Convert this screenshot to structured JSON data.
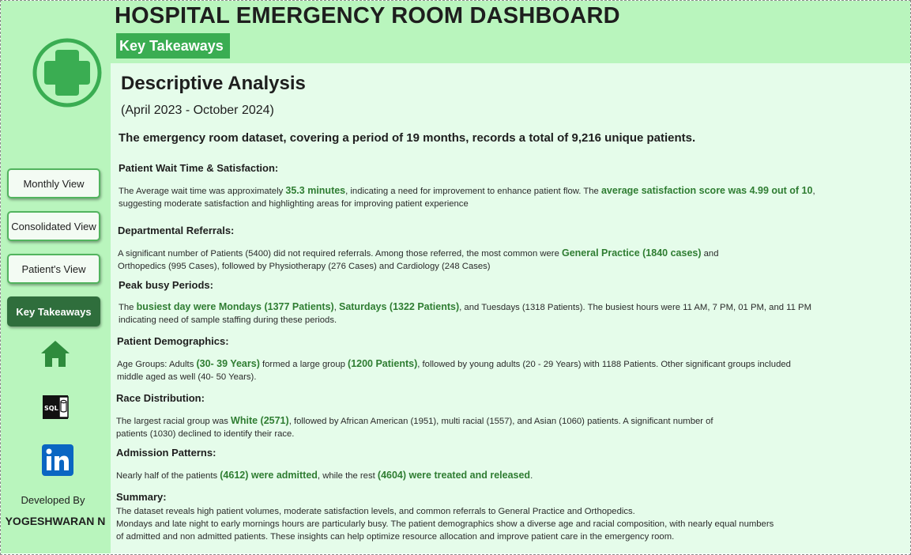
{
  "colors": {
    "sidebar_bg": "#b9f5bd",
    "content_bg": "#e5fcea",
    "accent": "#3aad52",
    "active_nav": "#2f6e3c",
    "highlight_text": "#2f7d32"
  },
  "header": {
    "title": "HOSPITAL EMERGENCY ROOM DASHBOARD",
    "badge": "Key Takeaways"
  },
  "sidebar": {
    "logo_icon": "medical-cross-icon",
    "nav": [
      {
        "label": "Monthly View",
        "active": false
      },
      {
        "label": "Consolidated View",
        "active": false
      },
      {
        "label": "Patient's View",
        "active": false
      },
      {
        "label": "Key Takeaways",
        "active": true
      }
    ],
    "icons": [
      "home-icon",
      "sql-database-icon",
      "linkedin-icon"
    ],
    "developed_by_label": "Developed By",
    "developer_name": "YOGESHWARAN N"
  },
  "main": {
    "heading": "Descriptive Analysis",
    "period": "(April 2023 - October 2024)",
    "lead": "The emergency room dataset, covering a period of 19 months, records a total of 9,216 unique patients.",
    "wait": {
      "heading": "Patient Wait Time & Satisfaction:",
      "l1a": "The Average wait time was approximately ",
      "l1b": "35.3 minutes",
      "l1c": ", indicating a need for improvement to enhance patient flow. The ",
      "l1d": "average satisfaction score was 4.99 out of 10",
      "l1e": ",",
      "l2": "suggesting moderate satisfaction and highlighting areas for improving patient experience"
    },
    "referrals": {
      "heading": "Departmental Referrals:",
      "l1a": "A significant number of Patients (5400) did not required referrals. Among those referred, the most common were ",
      "l1b": "General Practice (1840 cases)",
      "l1c": " and",
      "l2": "Orthopedics (995 Cases), followed by Physiotherapy (276 Cases) and Cardiology (248 Cases)"
    },
    "peak": {
      "heading": "Peak busy Periods:",
      "l1a": "The ",
      "l1b": "busiest day were Mondays (1377 Patients)",
      "l1c": ", ",
      "l1d": "Saturdays (1322 Patients)",
      "l1e": ", and Tuesdays (1318 Patients). The busiest hours were 11 AM, 7 PM, 01 PM, and 11 PM",
      "l2": "indicating need of sample staffing during these periods."
    },
    "demographics": {
      "heading": "Patient Demographics:",
      "l1a": "Age Groups: Adults ",
      "l1b": "(30- 39 Years)",
      "l1c": " formed a large group ",
      "l1d": "(1200 Patients)",
      "l1e": ", followed by young adults (20 - 29 Years) with 1188 Patients. Other significant groups included",
      "l2": "middle aged as well (40- 50 Years)."
    },
    "race": {
      "heading": "Race Distribution:",
      "l1a": "The largest racial group was ",
      "l1b": "White (2571)",
      "l1c": ", followed by African American (1951), multi racial (1557), and Asian (1060) patients. A significant number of",
      "l2": "patients (1030) declined to identify their race."
    },
    "admission": {
      "heading": "Admission Patterns:",
      "l1a": "Nearly half of the patients ",
      "l1b": "(4612) were admitted",
      "l1c": ", while the rest ",
      "l1d": "(4604) were treated and released",
      "l1e": "."
    },
    "summary": {
      "heading": "Summary:",
      "l1": "The dataset reveals high patient volumes, moderate satisfaction levels, and common referrals to General Practice and Orthopedics.",
      "l2": "Mondays and late night to early mornings hours are particularly busy. The patient demographics show a diverse age and racial composition, with nearly equal numbers",
      "l3": "of admitted and non admitted patients. These insights can help optimize resource allocation and improve patient care in the emergency room."
    }
  }
}
